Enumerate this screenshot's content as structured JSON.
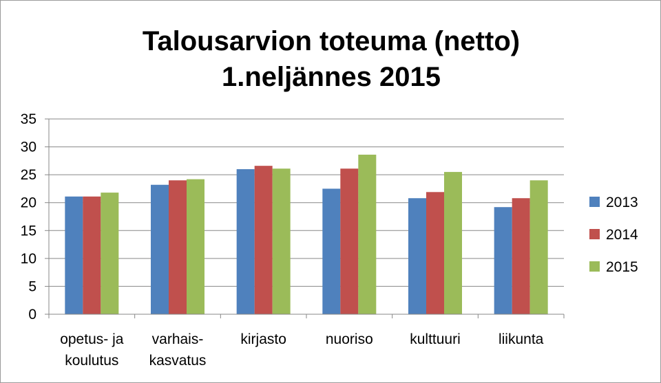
{
  "chart_data": {
    "type": "bar",
    "title": [
      "Talousarvion toteuma (netto)",
      "1.neljännes 2015"
    ],
    "categories": [
      [
        "opetus- ja",
        "koulutus"
      ],
      [
        "varhais-",
        "kasvatus"
      ],
      [
        "kirjasto"
      ],
      [
        "nuoriso"
      ],
      [
        "kulttuuri"
      ],
      [
        "liikunta"
      ]
    ],
    "series": [
      {
        "name": "2013",
        "color": "#4f81bd",
        "values": [
          21.1,
          23.2,
          26.0,
          22.5,
          20.8,
          19.2
        ]
      },
      {
        "name": "2014",
        "color": "#c0504d",
        "values": [
          21.1,
          24.0,
          26.6,
          26.1,
          21.9,
          20.8
        ]
      },
      {
        "name": "2015",
        "color": "#9bbb59",
        "values": [
          21.8,
          24.2,
          26.1,
          28.6,
          25.5,
          24.0
        ]
      }
    ],
    "ylim": [
      0,
      35
    ],
    "yticks": [
      "0",
      "5",
      "10",
      "15",
      "20",
      "25",
      "30",
      "35"
    ],
    "grid": true,
    "legend": "right"
  }
}
